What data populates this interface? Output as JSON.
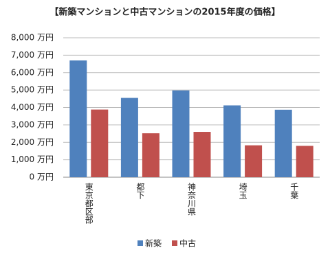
{
  "chart_data": {
    "type": "bar",
    "title": "【新築マンションと中古マンションの2015年度の価格】",
    "categories": [
      "東京都区部",
      "都下",
      "神奈川県",
      "埼玉",
      "千葉"
    ],
    "series": [
      {
        "name": "新築",
        "color": "#4f81bd",
        "values": [
          6700,
          4550,
          4980,
          4120,
          3870
        ]
      },
      {
        "name": "中古",
        "color": "#c0504d",
        "values": [
          3880,
          2520,
          2600,
          1830,
          1800
        ]
      }
    ],
    "ylim": [
      0,
      8000
    ],
    "yticks": [
      {
        "value": 0,
        "label": "0 万円"
      },
      {
        "value": 1000,
        "label": "1,000 万円"
      },
      {
        "value": 2000,
        "label": "2,000 万円"
      },
      {
        "value": 3000,
        "label": "3,000 万円"
      },
      {
        "value": 4000,
        "label": "4,000 万円"
      },
      {
        "value": 5000,
        "label": "5,000 万円"
      },
      {
        "value": 6000,
        "label": "6,000 万円"
      },
      {
        "value": 7000,
        "label": "7,000 万円"
      },
      {
        "value": 8000,
        "label": "8,000 万円"
      }
    ],
    "grid": true,
    "legend": "bottom"
  }
}
